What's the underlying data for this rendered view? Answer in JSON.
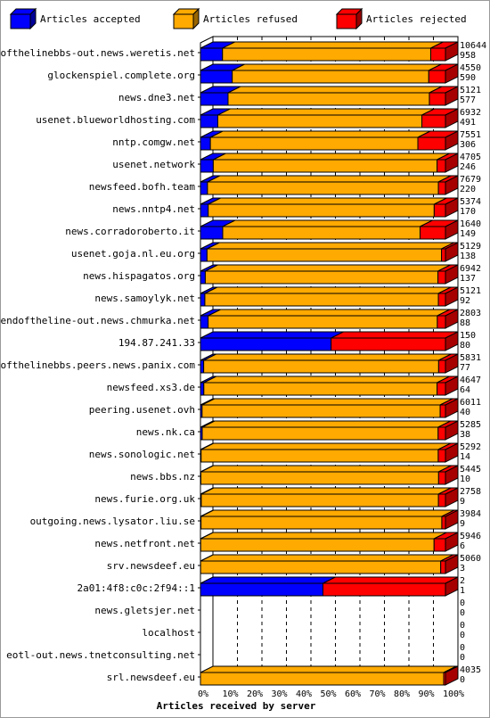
{
  "chart_data": {
    "type": "bar",
    "orientation": "horizontal",
    "stacked": true,
    "xlabel": "Articles received by server",
    "xlim": [
      0,
      100
    ],
    "x_unit": "%",
    "grid": true,
    "legend_position": "top",
    "x_ticks": [
      "0%",
      "10%",
      "20%",
      "30%",
      "40%",
      "50%",
      "60%",
      "70%",
      "80%",
      "90%",
      "100%"
    ],
    "colors": {
      "accepted": "#0000ff",
      "refused": "#ffaa00",
      "rejected": "#ff0000"
    },
    "series": [
      {
        "key": "accepted",
        "name": "Articles accepted"
      },
      {
        "key": "refused",
        "name": "Articles refused"
      },
      {
        "key": "rejected",
        "name": "Articles rejected"
      }
    ],
    "categories": [
      "endofthelinebbs-out.news.weretis.net",
      "glockenspiel.complete.org",
      "news.dne3.net",
      "usenet.blueworldhosting.com",
      "nntp.comgw.net",
      "usenet.network",
      "newsfeed.bofh.team",
      "news.nntp4.net",
      "news.corradoroberto.it",
      "usenet.goja.nl.eu.org",
      "news.hispagatos.org",
      "news.samoylyk.net",
      "endoftheline-out.news.chmurka.net",
      "194.87.241.33",
      "endofthelinebbs.peers.news.panix.com",
      "newsfeed.xs3.de",
      "peering.usenet.ovh",
      "news.nk.ca",
      "news.sonologic.net",
      "news.bbs.nz",
      "news.furie.org.uk",
      "outgoing.news.lysator.liu.se",
      "news.netfront.net",
      "srv.newsdeef.eu",
      "2a01:4f8:c0c:2f94::1",
      "news.gletsjer.net",
      "localhost",
      "eotl-out.news.tnetconsulting.net",
      "srl.newsdeef.eu"
    ],
    "total_labels": [
      "10644",
      "4550",
      "5121",
      "6932",
      "7551",
      "4705",
      "7679",
      "5374",
      "1640",
      "5129",
      "6942",
      "5121",
      "2803",
      "150",
      "5831",
      "4647",
      "6011",
      "5285",
      "5292",
      "5445",
      "2758",
      "3984",
      "5946",
      "5060",
      "2",
      "0",
      "0",
      "0",
      "4035"
    ],
    "accepted_labels": [
      "958",
      "590",
      "577",
      "491",
      "306",
      "246",
      "220",
      "170",
      "149",
      "138",
      "137",
      "92",
      "88",
      "80",
      "77",
      "64",
      "40",
      "38",
      "14",
      "10",
      "9",
      "9",
      "6",
      "3",
      "1",
      "0",
      "0",
      "0",
      "0"
    ],
    "accepted": [
      958,
      590,
      577,
      491,
      306,
      246,
      220,
      170,
      149,
      138,
      137,
      92,
      88,
      80,
      77,
      64,
      40,
      38,
      14,
      10,
      9,
      9,
      6,
      3,
      1,
      0,
      0,
      0,
      0
    ],
    "refused": [
      9046,
      3650,
      4208,
      5774,
      6395,
      4298,
      7238,
      4957,
      1321,
      4909,
      6592,
      4881,
      2622,
      0,
      5592,
      4424,
      5841,
      5089,
      5122,
      5283,
      2670,
      3916,
      5664,
      4959,
      0,
      0,
      0,
      0,
      4006
    ],
    "rejected": [
      640,
      310,
      336,
      667,
      850,
      161,
      221,
      247,
      170,
      82,
      213,
      148,
      93,
      70,
      162,
      159,
      130,
      158,
      156,
      152,
      79,
      59,
      276,
      98,
      1,
      0,
      0,
      0,
      29
    ]
  }
}
